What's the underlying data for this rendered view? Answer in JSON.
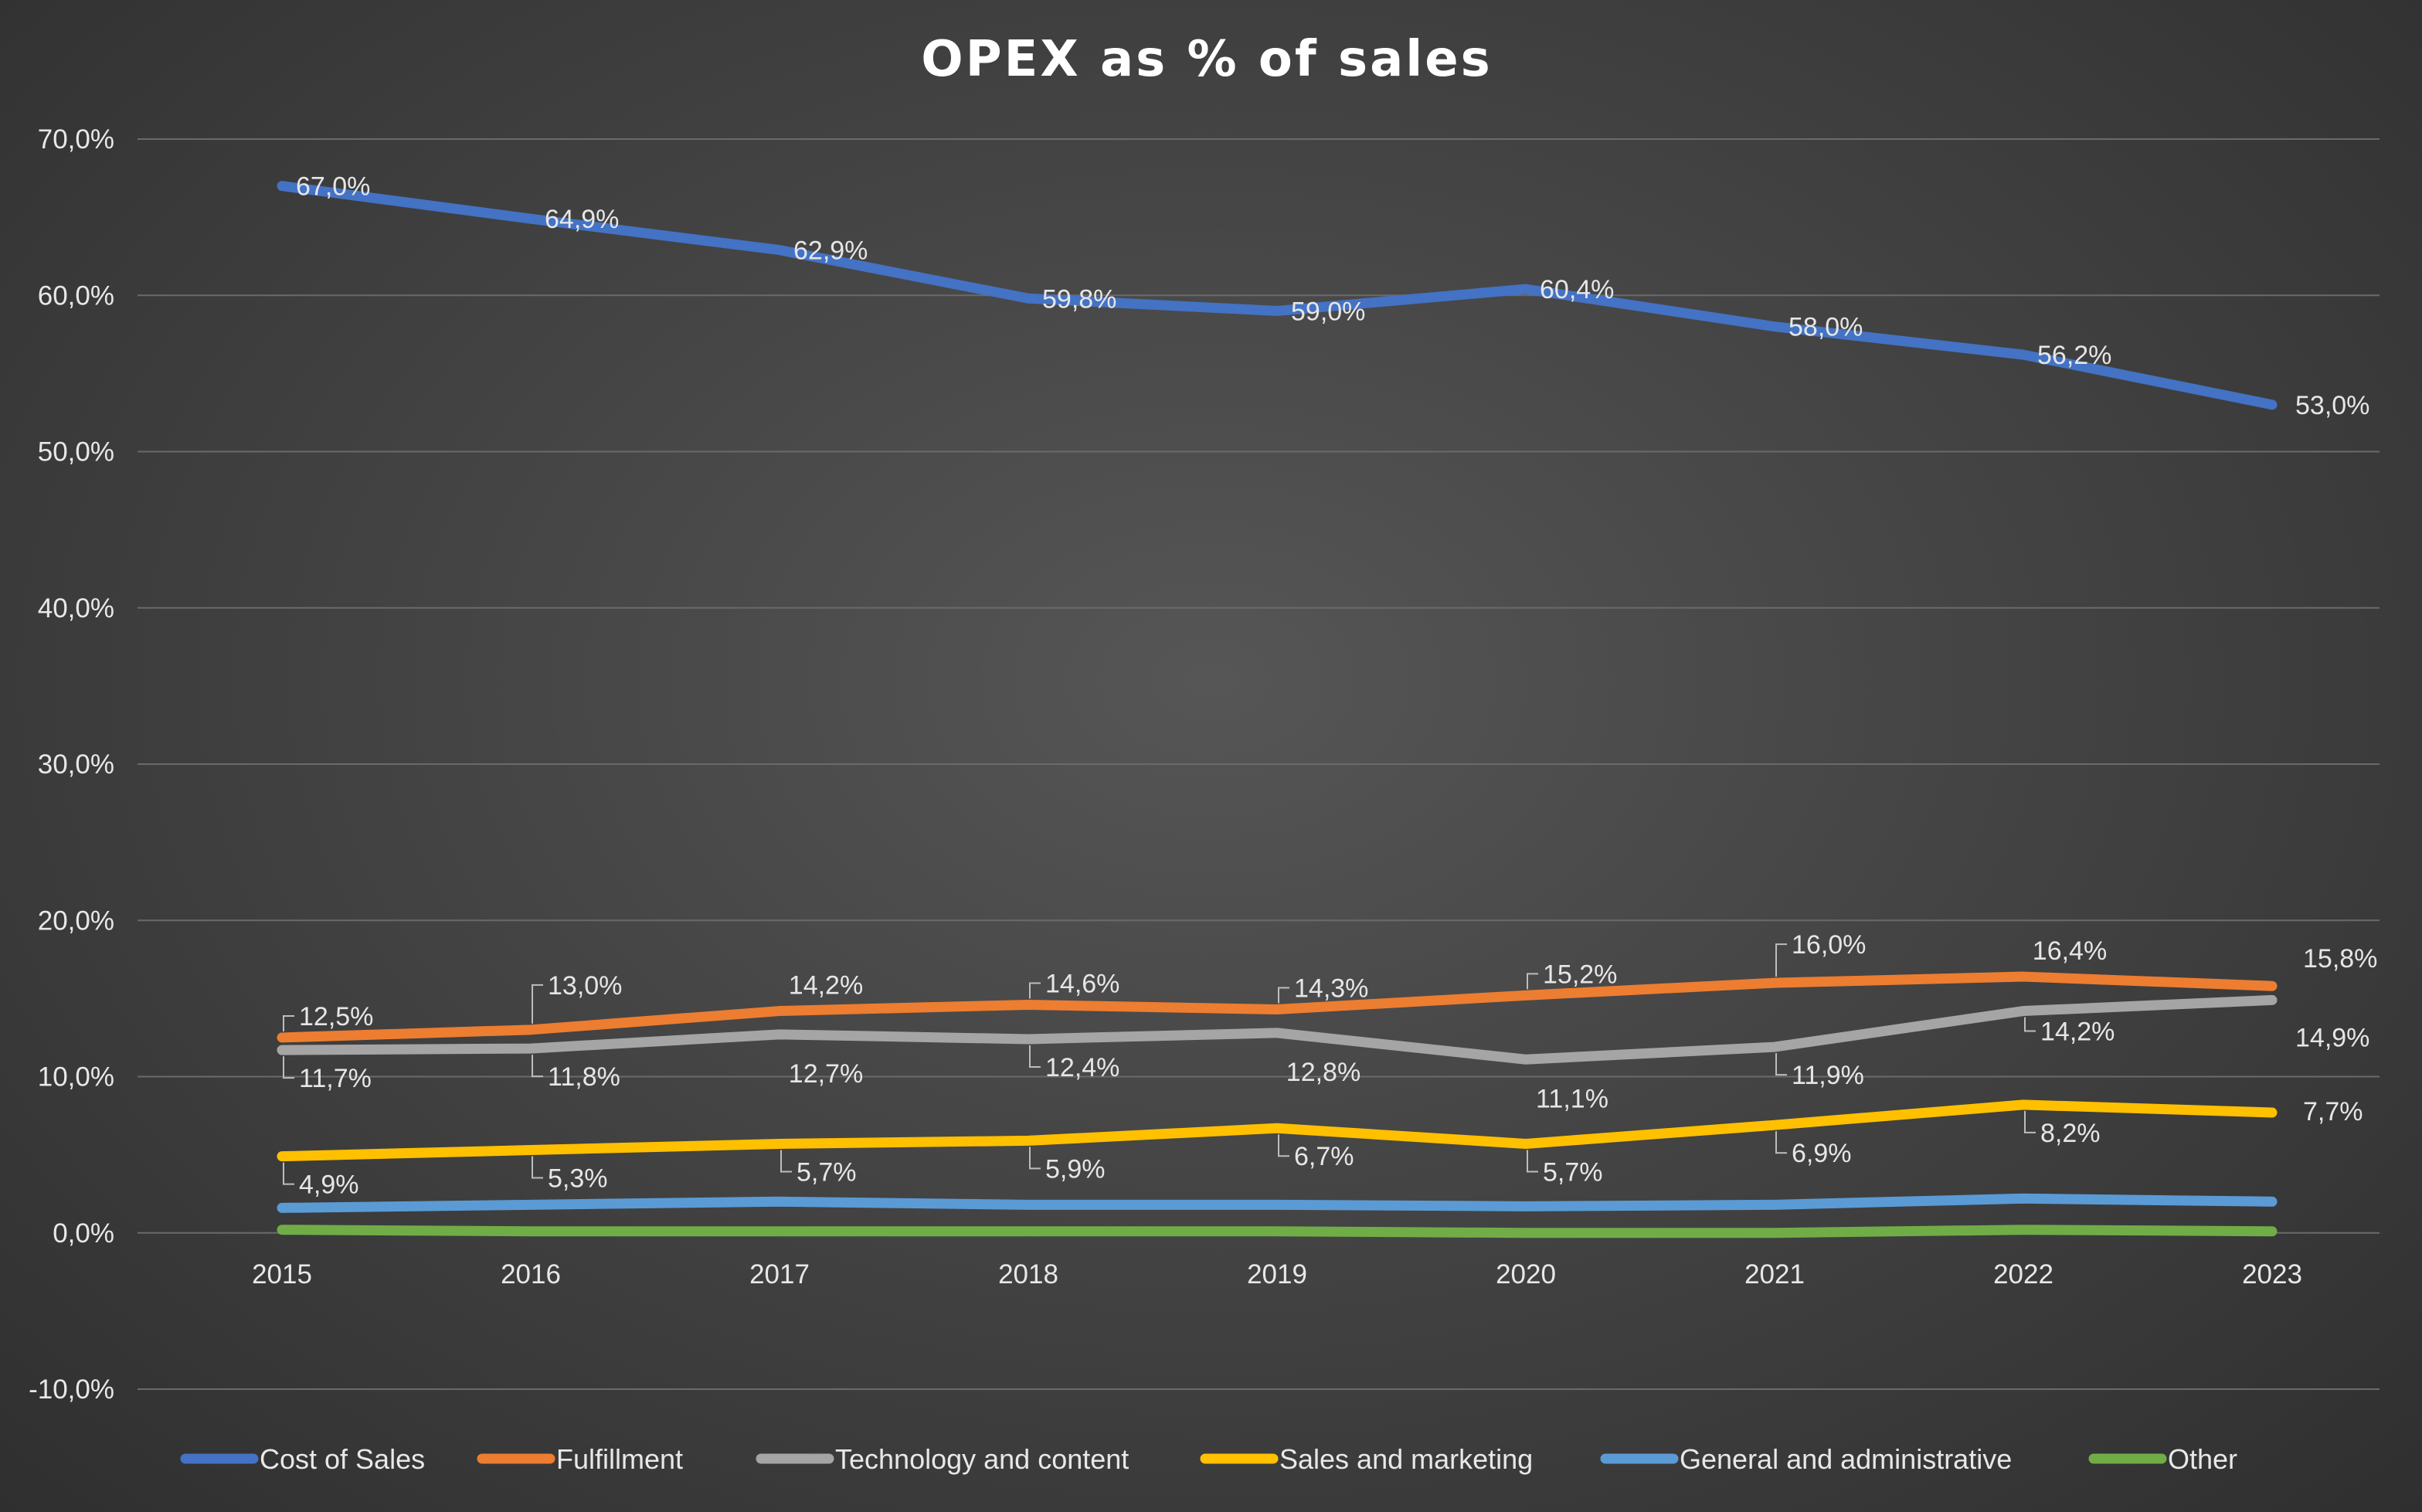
{
  "chart_data": {
    "type": "line",
    "title": "OPEX as % of sales",
    "xlabel": "",
    "ylabel": "",
    "categories": [
      "2015",
      "2016",
      "2017",
      "2018",
      "2019",
      "2020",
      "2021",
      "2022",
      "2023"
    ],
    "y_ticks": [
      "-10,0%",
      "0,0%",
      "10,0%",
      "20,0%",
      "30,0%",
      "40,0%",
      "50,0%",
      "60,0%",
      "70,0%"
    ],
    "ylim": [
      -10,
      70
    ],
    "grid": true,
    "legend_position": "bottom",
    "series": [
      {
        "name": "Cost of Sales",
        "color": "#4472c4",
        "values": [
          67.0,
          64.9,
          62.9,
          59.8,
          59.0,
          60.4,
          58.0,
          56.2,
          53.0
        ],
        "labels": [
          "67,0%",
          "64,9%",
          "62,9%",
          "59,8%",
          "59,0%",
          "60,4%",
          "58,0%",
          "56,2%",
          "53,0%"
        ]
      },
      {
        "name": "Fulfillment",
        "color": "#ed7d31",
        "values": [
          12.5,
          13.0,
          14.2,
          14.6,
          14.3,
          15.2,
          16.0,
          16.4,
          15.8
        ],
        "labels": [
          "12,5%",
          "13,0%",
          "14,2%",
          "14,6%",
          "14,3%",
          "15,2%",
          "16,0%",
          "16,4%",
          "15,8%"
        ]
      },
      {
        "name": "Technology and content",
        "color": "#a5a5a5",
        "values": [
          11.7,
          11.8,
          12.7,
          12.4,
          12.8,
          11.1,
          11.9,
          14.2,
          14.9
        ],
        "labels": [
          "11,7%",
          "11,8%",
          "12,7%",
          "12,4%",
          "12,8%",
          "11,1%",
          "11,9%",
          "14,2%",
          "14,9%"
        ]
      },
      {
        "name": "Sales and marketing",
        "color": "#ffc000",
        "values": [
          4.9,
          5.3,
          5.7,
          5.9,
          6.7,
          5.7,
          6.9,
          8.2,
          7.7
        ],
        "labels": [
          "4,9%",
          "5,3%",
          "5,7%",
          "5,9%",
          "6,7%",
          "5,7%",
          "6,9%",
          "8,2%",
          "7,7%"
        ]
      },
      {
        "name": "General and administrative",
        "color": "#5b9bd5",
        "values": [
          1.6,
          1.8,
          2.0,
          1.8,
          1.8,
          1.7,
          1.8,
          2.2,
          2.0
        ],
        "labels": []
      },
      {
        "name": "Other",
        "color": "#70ad47",
        "values": [
          0.2,
          0.1,
          0.1,
          0.1,
          0.1,
          0.0,
          0.0,
          0.2,
          0.1
        ],
        "labels": []
      }
    ]
  }
}
